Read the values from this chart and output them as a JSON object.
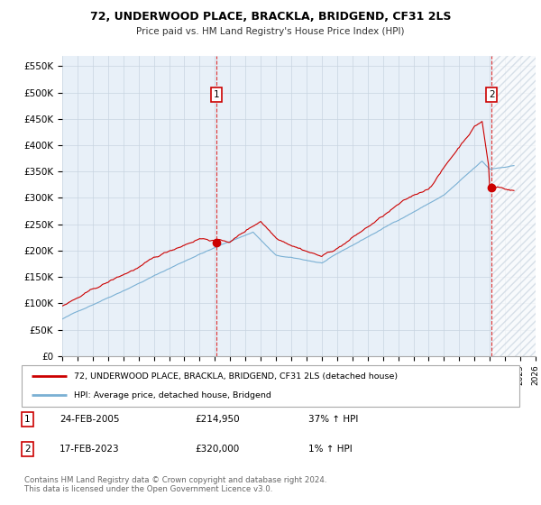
{
  "title": "72, UNDERWOOD PLACE, BRACKLA, BRIDGEND, CF31 2LS",
  "subtitle": "Price paid vs. HM Land Registry's House Price Index (HPI)",
  "ylabel_ticks": [
    "£0",
    "£50K",
    "£100K",
    "£150K",
    "£200K",
    "£250K",
    "£300K",
    "£350K",
    "£400K",
    "£450K",
    "£500K",
    "£550K"
  ],
  "ytick_vals": [
    0,
    50000,
    100000,
    150000,
    200000,
    250000,
    300000,
    350000,
    400000,
    450000,
    500000,
    550000
  ],
  "ylim": [
    0,
    570000
  ],
  "sale1_x": 2005.12,
  "sale1_y": 214950,
  "sale2_x": 2023.12,
  "sale2_y": 320000,
  "line_color_property": "#cc0000",
  "line_color_hpi": "#7ab0d4",
  "background_color": "#ffffff",
  "chart_bg": "#e8f0f8",
  "grid_color": "#c8d4e0",
  "legend_line1": "72, UNDERWOOD PLACE, BRACKLA, BRIDGEND, CF31 2LS (detached house)",
  "legend_line2": "HPI: Average price, detached house, Bridgend",
  "annotation1": [
    "1",
    "24-FEB-2005",
    "£214,950",
    "37% ↑ HPI"
  ],
  "annotation2": [
    "2",
    "17-FEB-2023",
    "£320,000",
    "1% ↑ HPI"
  ],
  "footer": "Contains HM Land Registry data © Crown copyright and database right 2024.\nThis data is licensed under the Open Government Licence v3.0.",
  "xlim_left": 1995.0,
  "xlim_right": 2026.0
}
